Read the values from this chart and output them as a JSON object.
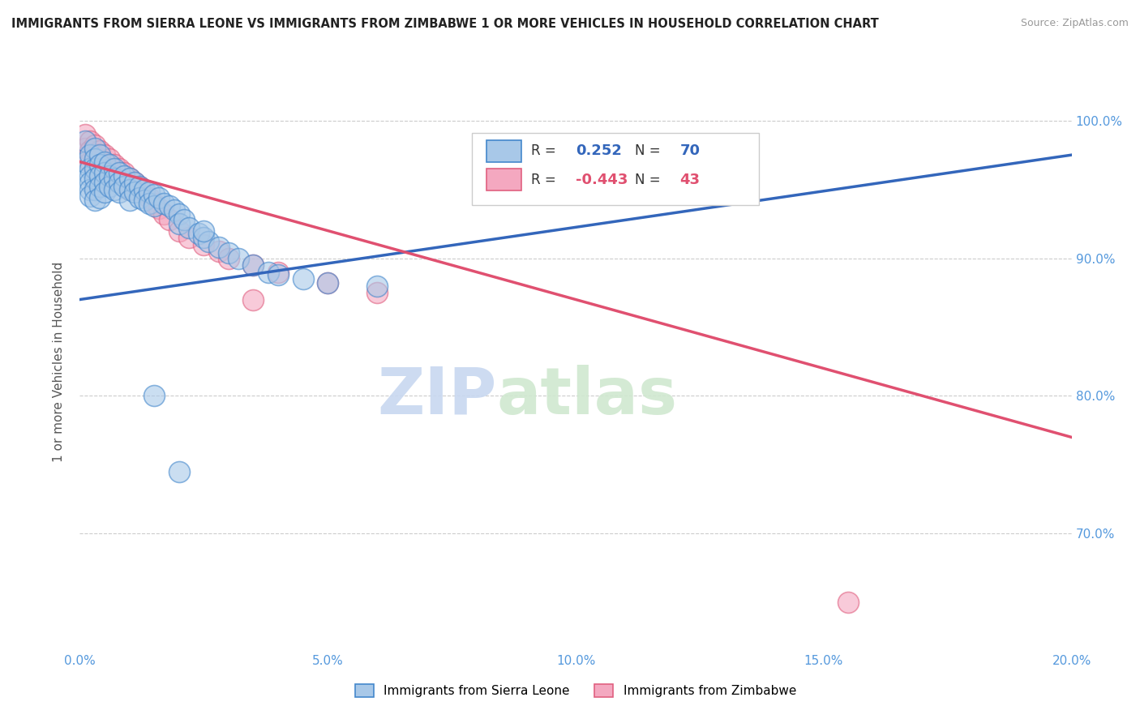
{
  "title": "IMMIGRANTS FROM SIERRA LEONE VS IMMIGRANTS FROM ZIMBABWE 1 OR MORE VEHICLES IN HOUSEHOLD CORRELATION CHART",
  "source": "Source: ZipAtlas.com",
  "ylabel": "1 or more Vehicles in Household",
  "yticks": [
    "70.0%",
    "80.0%",
    "90.0%",
    "100.0%"
  ],
  "ytick_vals": [
    0.7,
    0.8,
    0.9,
    1.0
  ],
  "xmin": 0.0,
  "xmax": 0.2,
  "ymin": 0.615,
  "ymax": 1.035,
  "sierra_leone_R": 0.252,
  "sierra_leone_N": 70,
  "zimbabwe_R": -0.443,
  "zimbabwe_N": 43,
  "sierra_leone_color": "#A8C8E8",
  "zimbabwe_color": "#F4A8C0",
  "sierra_leone_edge_color": "#4488CC",
  "zimbabwe_edge_color": "#E06080",
  "sierra_leone_line_color": "#3366BB",
  "zimbabwe_line_color": "#E05070",
  "legend_sierra": "Immigrants from Sierra Leone",
  "legend_zimbabwe": "Immigrants from Zimbabwe",
  "watermark_zip": "ZIP",
  "watermark_atlas": "atlas",
  "sl_trend_x": [
    0.0,
    0.2
  ],
  "sl_trend_y": [
    0.87,
    0.975
  ],
  "zim_trend_x": [
    0.0,
    0.2
  ],
  "zim_trend_y": [
    0.97,
    0.77
  ],
  "sierra_leone_x": [
    0.001,
    0.001,
    0.002,
    0.002,
    0.002,
    0.002,
    0.002,
    0.002,
    0.003,
    0.003,
    0.003,
    0.003,
    0.003,
    0.003,
    0.004,
    0.004,
    0.004,
    0.004,
    0.004,
    0.005,
    0.005,
    0.005,
    0.005,
    0.006,
    0.006,
    0.006,
    0.007,
    0.007,
    0.007,
    0.008,
    0.008,
    0.008,
    0.009,
    0.009,
    0.01,
    0.01,
    0.01,
    0.011,
    0.011,
    0.012,
    0.012,
    0.013,
    0.013,
    0.014,
    0.014,
    0.015,
    0.015,
    0.016,
    0.017,
    0.018,
    0.019,
    0.02,
    0.02,
    0.021,
    0.022,
    0.024,
    0.025,
    0.026,
    0.028,
    0.03,
    0.032,
    0.035,
    0.038,
    0.04,
    0.045,
    0.05,
    0.06,
    0.015,
    0.02,
    0.025
  ],
  "sierra_leone_y": [
    0.97,
    0.985,
    0.975,
    0.965,
    0.96,
    0.955,
    0.95,
    0.945,
    0.98,
    0.972,
    0.965,
    0.958,
    0.95,
    0.942,
    0.975,
    0.968,
    0.96,
    0.952,
    0.944,
    0.97,
    0.962,
    0.955,
    0.948,
    0.968,
    0.96,
    0.952,
    0.965,
    0.958,
    0.95,
    0.962,
    0.955,
    0.948,
    0.96,
    0.952,
    0.958,
    0.95,
    0.942,
    0.955,
    0.948,
    0.952,
    0.944,
    0.95,
    0.942,
    0.948,
    0.94,
    0.946,
    0.938,
    0.944,
    0.94,
    0.938,
    0.935,
    0.932,
    0.925,
    0.928,
    0.922,
    0.918,
    0.915,
    0.912,
    0.908,
    0.904,
    0.9,
    0.895,
    0.89,
    0.888,
    0.885,
    0.882,
    0.88,
    0.8,
    0.745,
    0.92
  ],
  "zimbabwe_x": [
    0.001,
    0.001,
    0.002,
    0.002,
    0.002,
    0.003,
    0.003,
    0.003,
    0.004,
    0.004,
    0.004,
    0.005,
    0.005,
    0.005,
    0.006,
    0.006,
    0.007,
    0.007,
    0.008,
    0.008,
    0.009,
    0.009,
    0.01,
    0.01,
    0.011,
    0.012,
    0.013,
    0.014,
    0.015,
    0.016,
    0.017,
    0.018,
    0.02,
    0.022,
    0.025,
    0.028,
    0.03,
    0.035,
    0.04,
    0.05,
    0.06,
    0.155,
    0.035
  ],
  "zimbabwe_y": [
    0.99,
    0.98,
    0.985,
    0.978,
    0.97,
    0.982,
    0.975,
    0.968,
    0.978,
    0.972,
    0.965,
    0.975,
    0.968,
    0.96,
    0.972,
    0.965,
    0.968,
    0.96,
    0.965,
    0.958,
    0.962,
    0.955,
    0.958,
    0.95,
    0.955,
    0.952,
    0.948,
    0.944,
    0.94,
    0.936,
    0.932,
    0.928,
    0.92,
    0.915,
    0.91,
    0.905,
    0.9,
    0.895,
    0.89,
    0.882,
    0.875,
    0.65,
    0.87
  ]
}
